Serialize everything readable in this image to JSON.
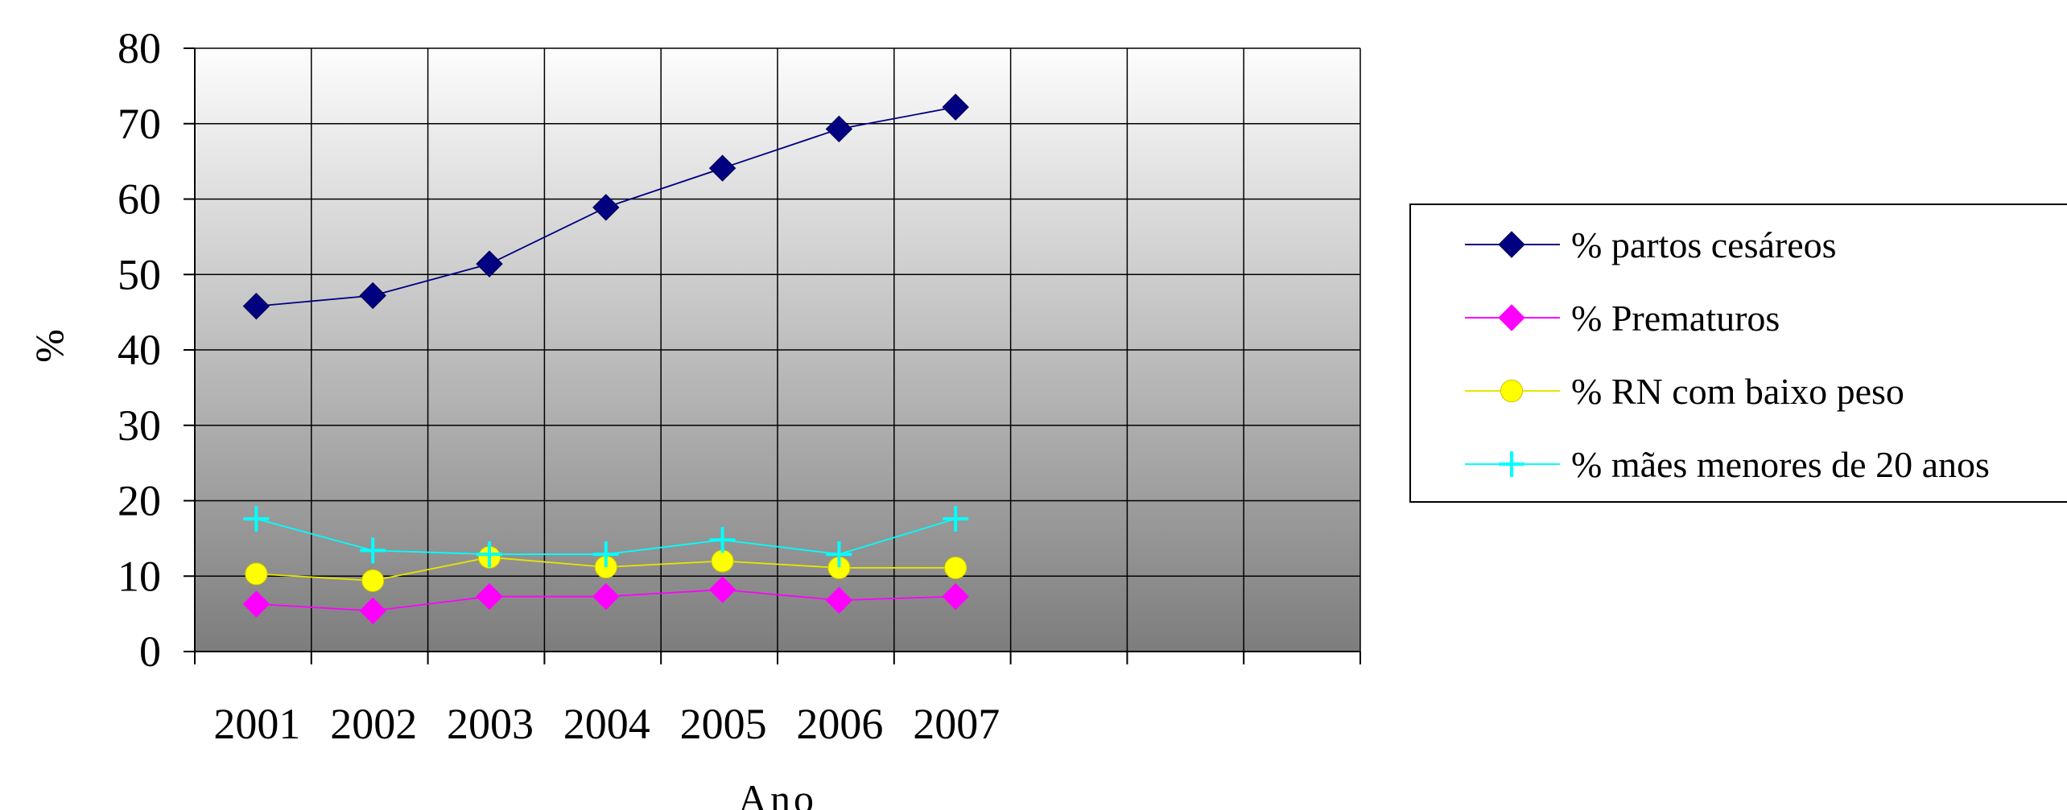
{
  "chart_data": {
    "type": "line",
    "title": "",
    "xlabel": "Ano",
    "ylabel": "%",
    "ylim": [
      0,
      80
    ],
    "yticks": [
      "0",
      "10",
      "20",
      "30",
      "40",
      "50",
      "60",
      "70",
      "80"
    ],
    "categories": [
      "2001",
      "2002",
      "2003",
      "2004",
      "2005",
      "2006",
      "2007"
    ],
    "grid": true,
    "legend_position": "right",
    "series": [
      {
        "name": "% partos cesáreos",
        "color": "#000080",
        "marker": "diamond",
        "values": [
          45.8,
          47.2,
          51.4,
          58.9,
          64.1,
          69.3,
          72.2
        ]
      },
      {
        "name": "% Prematuros",
        "color": "#ff00ff",
        "marker": "diamond",
        "values": [
          6.3,
          5.4,
          7.3,
          7.3,
          8.2,
          6.8,
          7.3
        ]
      },
      {
        "name": "% RN com baixo peso",
        "color": "#ffff00",
        "marker": "circle",
        "values": [
          10.3,
          9.4,
          12.5,
          11.2,
          12.0,
          11.1,
          11.1
        ]
      },
      {
        "name": "% mães menores de 20 anos",
        "color": "#00ffff",
        "marker": "plus",
        "values": [
          17.6,
          13.4,
          12.9,
          12.9,
          14.8,
          12.9,
          17.6
        ]
      }
    ]
  }
}
